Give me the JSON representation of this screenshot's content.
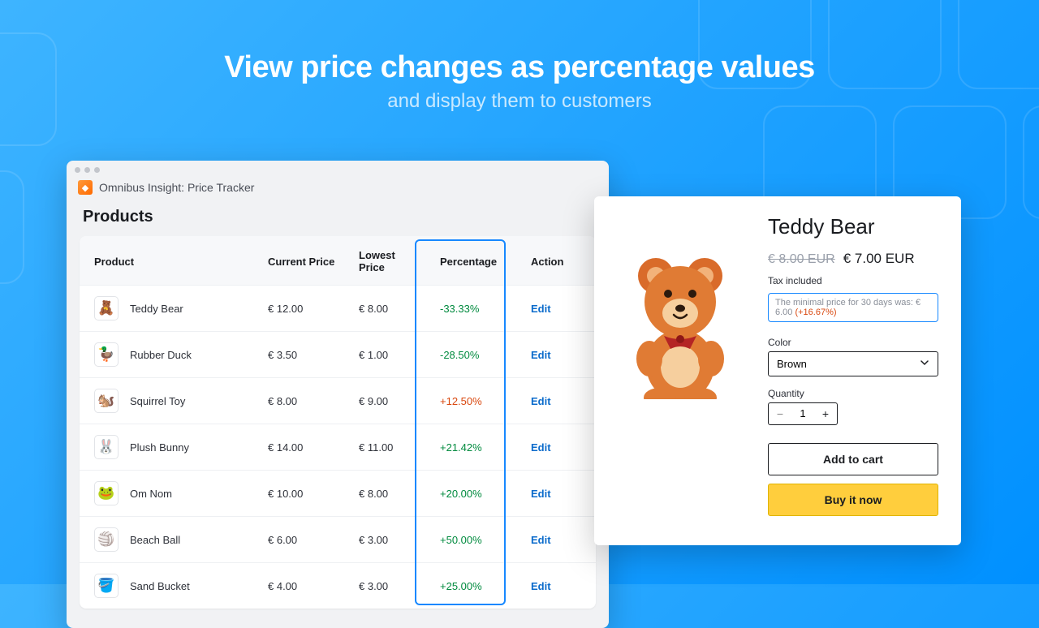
{
  "headline": {
    "title": "View price changes as percentage values",
    "subtitle": "and display them to customers"
  },
  "admin": {
    "app_name": "Omnibus Insight: Price Tracker",
    "section_title": "Products",
    "columns": {
      "product": "Product",
      "current_price": "Current Price",
      "lowest_price": "Lowest Price",
      "percentage": "Percentage",
      "action": "Action"
    },
    "action_label": "Edit",
    "rows": [
      {
        "name": "Teddy Bear",
        "emoji": "🧸",
        "current_price": "€ 12.00",
        "lowest_price": "€ 8.00",
        "percentage": "-33.33%",
        "direction": "down"
      },
      {
        "name": "Rubber Duck",
        "emoji": "🦆",
        "current_price": "€ 3.50",
        "lowest_price": "€ 1.00",
        "percentage": "-28.50%",
        "direction": "down"
      },
      {
        "name": "Squirrel Toy",
        "emoji": "🐿️",
        "current_price": "€ 8.00",
        "lowest_price": "€ 9.00",
        "percentage": "+12.50%",
        "direction": "up"
      },
      {
        "name": "Plush Bunny",
        "emoji": "🐰",
        "current_price": "€ 14.00",
        "lowest_price": "€ 11.00",
        "percentage": "+21.42%",
        "direction": "up-green"
      },
      {
        "name": "Om Nom",
        "emoji": "🐸",
        "current_price": "€ 10.00",
        "lowest_price": "€ 8.00",
        "percentage": "+20.00%",
        "direction": "up-green"
      },
      {
        "name": "Beach Ball",
        "emoji": "🏐",
        "current_price": "€ 6.00",
        "lowest_price": "€ 3.00",
        "percentage": "+50.00%",
        "direction": "up-green"
      },
      {
        "name": "Sand Bucket",
        "emoji": "🪣",
        "current_price": "€ 4.00",
        "lowest_price": "€ 3.00",
        "percentage": "+25.00%",
        "direction": "up-green"
      }
    ]
  },
  "store": {
    "product_title": "Teddy Bear",
    "compare_price": "€ 8.00 EUR",
    "sale_price": "€ 7.00 EUR",
    "tax_line": "Tax included",
    "omnibus_text": "The minimal price for 30 days was: € 6.00 ",
    "omnibus_change": "(+16.67%)",
    "color_label": "Color",
    "color_value": "Brown",
    "quantity_label": "Quantity",
    "quantity_value": "1",
    "add_to_cart": "Add to cart",
    "buy_now": "Buy it now"
  },
  "colors": {
    "bg_gradient_start": "#3eb4ff",
    "bg_gradient_end": "#0090ff",
    "highlight_border": "#1788ff",
    "positive": "#008a3e",
    "negative_up": "#d9480f",
    "link": "#0b6bcb",
    "buy_button": "#ffce3d"
  }
}
